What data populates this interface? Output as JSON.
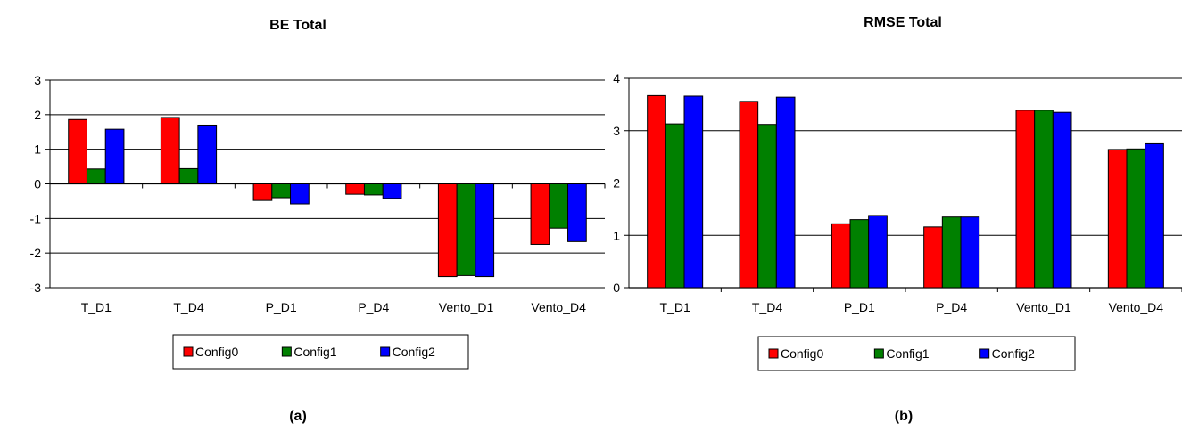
{
  "colors": {
    "Config0": "#ff0000",
    "Config1": "#008000",
    "Config2": "#0000ff"
  },
  "chart_data": [
    {
      "type": "bar",
      "panel_label": "(a)",
      "title": "BE Total",
      "xlabel": "",
      "ylabel": "",
      "ylim": [
        -3,
        3
      ],
      "yticks": [
        -3,
        -2,
        -1,
        0,
        1,
        2,
        3
      ],
      "grid": true,
      "legend_position": "bottom",
      "categories": [
        "T_D1",
        "T_D4",
        "P_D1",
        "P_D4",
        "Vento_D1",
        "Vento_D4"
      ],
      "series": [
        {
          "name": "Config0",
          "values": [
            1.86,
            1.92,
            -0.48,
            -0.3,
            -2.68,
            -1.75
          ]
        },
        {
          "name": "Config1",
          "values": [
            0.43,
            0.44,
            -0.4,
            -0.32,
            -2.65,
            -1.28
          ]
        },
        {
          "name": "Config2",
          "values": [
            1.58,
            1.7,
            -0.58,
            -0.42,
            -2.68,
            -1.67
          ]
        }
      ]
    },
    {
      "type": "bar",
      "panel_label": "(b)",
      "title": "RMSE Total",
      "xlabel": "",
      "ylabel": "",
      "ylim": [
        0,
        4
      ],
      "yticks": [
        0,
        1,
        2,
        3,
        4
      ],
      "grid": true,
      "legend_position": "bottom",
      "categories": [
        "T_D1",
        "T_D4",
        "P_D1",
        "P_D4",
        "Vento_D1",
        "Vento_D4"
      ],
      "series": [
        {
          "name": "Config0",
          "values": [
            3.67,
            3.56,
            1.22,
            1.16,
            3.39,
            2.64
          ]
        },
        {
          "name": "Config1",
          "values": [
            3.13,
            3.12,
            1.3,
            1.35,
            3.39,
            2.65
          ]
        },
        {
          "name": "Config2",
          "values": [
            3.66,
            3.64,
            1.38,
            1.35,
            3.35,
            2.75
          ]
        }
      ]
    }
  ]
}
